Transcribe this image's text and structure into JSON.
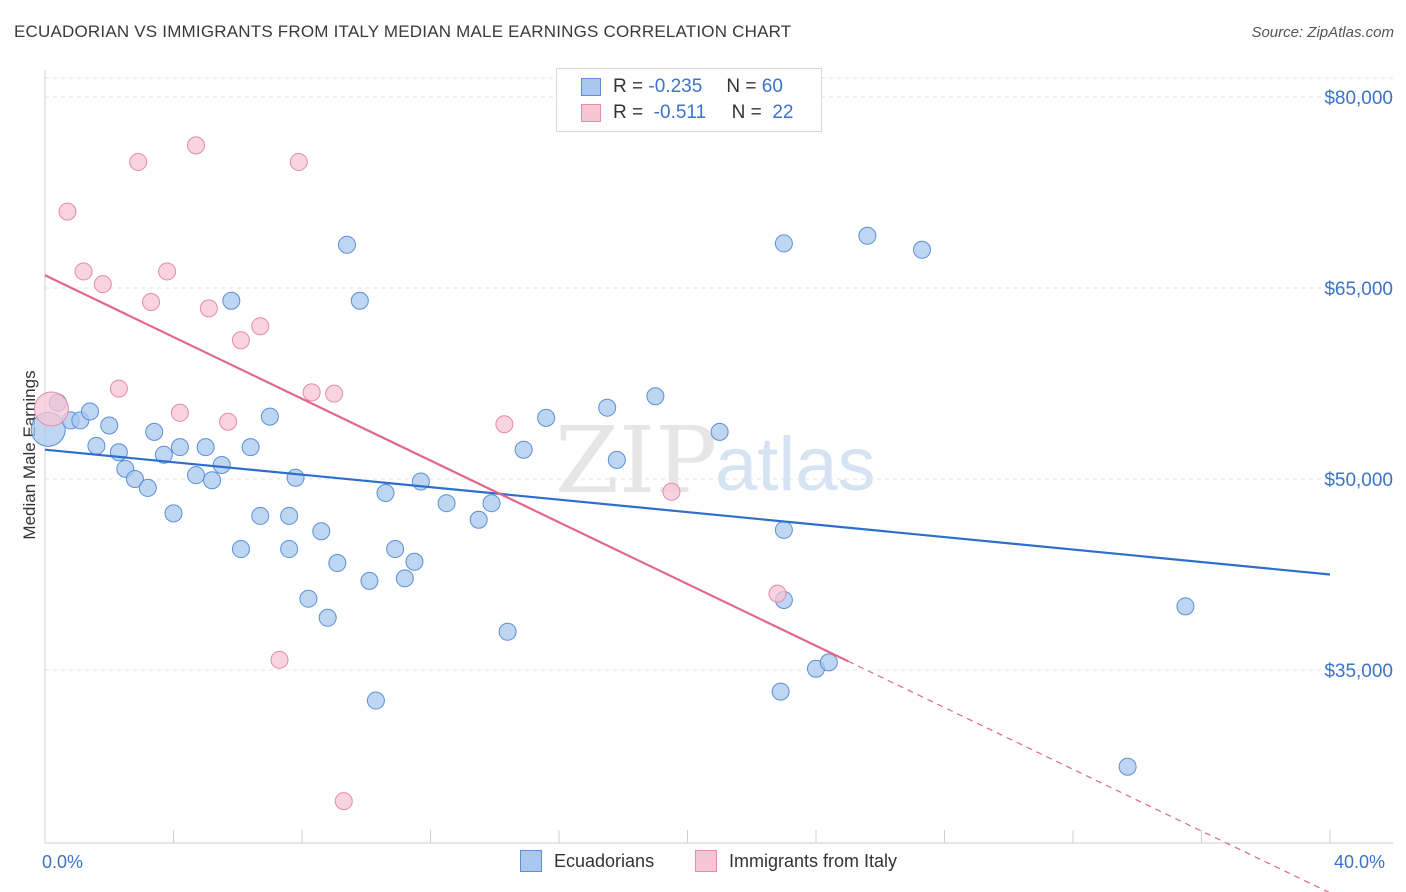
{
  "title": "ECUADORIAN VS IMMIGRANTS FROM ITALY MEDIAN MALE EARNINGS CORRELATION CHART",
  "source": "Source: ZipAtlas.com",
  "watermark": {
    "zip": "ZIP",
    "atlas": "atlas"
  },
  "legend": {
    "rows": [
      {
        "r_label": "R =",
        "r_value": "-0.235",
        "n_label": "N =",
        "n_value": "60",
        "color": "#aac8ef",
        "border": "#5a8fd6"
      },
      {
        "r_label": "R =",
        "r_value": "-0.511",
        "n_label": "N =",
        "n_value": "22",
        "color": "#f7c6d5",
        "border": "#e68aa7"
      }
    ]
  },
  "bottom_legend": [
    {
      "label": "Ecuadorians",
      "color": "#aac8ef",
      "border": "#5a8fd6"
    },
    {
      "label": "Immigrants from Italy",
      "color": "#f7c6d5",
      "border": "#e68aa7"
    }
  ],
  "chart_data": {
    "type": "scatter",
    "xlabel": "",
    "ylabel": "Median Male Earnings",
    "x_tick_labels": [
      "0.0%",
      "40.0%"
    ],
    "y_tick_labels": [
      "$80,000",
      "$65,000",
      "$50,000",
      "$35,000"
    ],
    "y_ticks": [
      80000,
      65000,
      50000,
      35000
    ],
    "xlim": [
      0,
      40
    ],
    "ylim": [
      18000,
      83000
    ],
    "grid": true,
    "series": [
      {
        "name": "Ecuadorians",
        "color": "#5a8fd6",
        "fill": "#aac8ef",
        "trend": {
          "x": [
            0,
            40
          ],
          "y": [
            52300,
            42500
          ],
          "solid_to": 40
        },
        "points": [
          [
            0.1,
            53900,
            "large"
          ],
          [
            0.4,
            56000
          ],
          [
            0.8,
            54600
          ],
          [
            1.1,
            54600
          ],
          [
            1.4,
            55300
          ],
          [
            1.6,
            52600
          ],
          [
            2.0,
            54200
          ],
          [
            2.3,
            52100
          ],
          [
            2.5,
            50800
          ],
          [
            2.8,
            50000
          ],
          [
            3.2,
            49300
          ],
          [
            3.4,
            53700
          ],
          [
            3.7,
            51900
          ],
          [
            4.0,
            47300
          ],
          [
            4.2,
            52500
          ],
          [
            4.7,
            50300
          ],
          [
            5.0,
            52500
          ],
          [
            5.2,
            49900
          ],
          [
            5.5,
            51100
          ],
          [
            5.8,
            64000
          ],
          [
            6.1,
            44500
          ],
          [
            6.4,
            52500
          ],
          [
            6.7,
            47100
          ],
          [
            7.0,
            54900
          ],
          [
            7.6,
            44500
          ],
          [
            7.6,
            47100
          ],
          [
            7.8,
            50100
          ],
          [
            8.2,
            40600
          ],
          [
            8.6,
            45900
          ],
          [
            8.8,
            39100
          ],
          [
            9.1,
            43400
          ],
          [
            9.4,
            68400
          ],
          [
            9.8,
            64000
          ],
          [
            10.1,
            42000
          ],
          [
            10.3,
            32600
          ],
          [
            10.6,
            48900
          ],
          [
            10.9,
            44500
          ],
          [
            11.2,
            42200
          ],
          [
            11.5,
            43500
          ],
          [
            11.7,
            49800
          ],
          [
            12.5,
            48100
          ],
          [
            13.5,
            46800
          ],
          [
            13.9,
            48100
          ],
          [
            14.4,
            38000
          ],
          [
            14.9,
            52300
          ],
          [
            15.6,
            54800
          ],
          [
            17.5,
            55600
          ],
          [
            17.8,
            51500
          ],
          [
            19.0,
            56500
          ],
          [
            21.0,
            53700
          ],
          [
            23.0,
            68500
          ],
          [
            23.0,
            40500
          ],
          [
            23.0,
            46000
          ],
          [
            22.9,
            33300
          ],
          [
            24.0,
            35100
          ],
          [
            24.4,
            35600
          ],
          [
            25.6,
            69100
          ],
          [
            27.3,
            68000
          ],
          [
            35.5,
            40000
          ],
          [
            33.7,
            27400
          ]
        ]
      },
      {
        "name": "Immigrants from Italy",
        "color": "#e68aa7",
        "fill": "#f7c6d5",
        "trend": {
          "x": [
            0,
            40
          ],
          "y": [
            66000,
            17500
          ],
          "solid_to": 25
        },
        "points": [
          [
            0.2,
            55500,
            "large"
          ],
          [
            0.7,
            71000
          ],
          [
            1.2,
            66300
          ],
          [
            1.8,
            65300
          ],
          [
            2.3,
            57100
          ],
          [
            2.9,
            74900
          ],
          [
            3.3,
            63900
          ],
          [
            3.8,
            66300
          ],
          [
            4.2,
            55200
          ],
          [
            4.7,
            76200
          ],
          [
            5.1,
            63400
          ],
          [
            5.7,
            54500
          ],
          [
            6.1,
            60900
          ],
          [
            6.7,
            62000
          ],
          [
            7.3,
            35800
          ],
          [
            7.9,
            74900
          ],
          [
            8.3,
            56800
          ],
          [
            9.0,
            56700
          ],
          [
            9.3,
            24700
          ],
          [
            14.3,
            54300
          ],
          [
            19.5,
            49000
          ],
          [
            22.8,
            41000
          ]
        ]
      }
    ]
  }
}
